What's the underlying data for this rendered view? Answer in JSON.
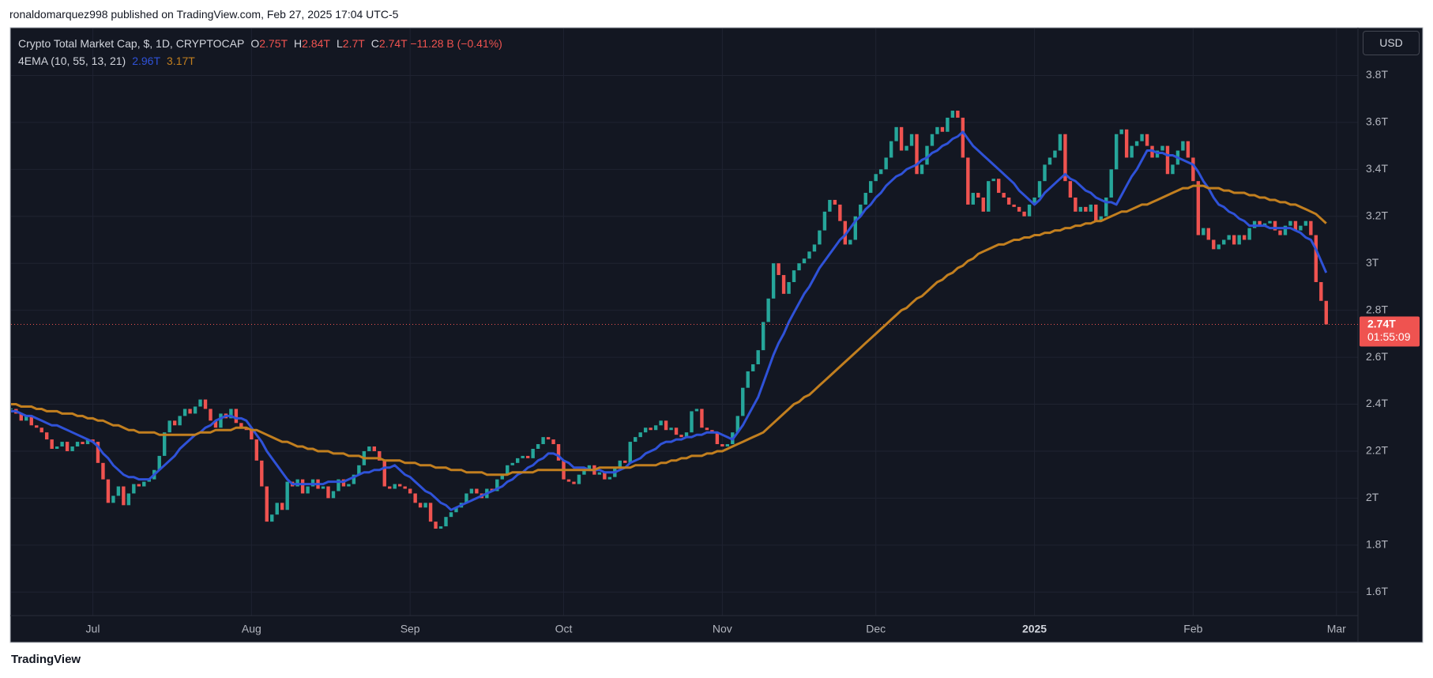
{
  "header": {
    "text": "ronaldomarquez998 published on TradingView.com, Feb 27, 2025 17:04 UTC-5"
  },
  "footer": {
    "brand": "TradingView"
  },
  "chart_data": {
    "type": "candlestick",
    "title": "Crypto Total Market Cap, $, 1D, CRYPTOCAP",
    "ohlc": [
      {
        "label": "O",
        "value": "2.75T"
      },
      {
        "label": "H",
        "value": "2.84T"
      },
      {
        "label": "L",
        "value": "2.7T"
      },
      {
        "label": "C",
        "value": "2.74T"
      }
    ],
    "change": "−11.28 B (−0.41%)",
    "indicator": "4EMA (10, 55, 13, 21)",
    "currency": "USD",
    "last_label": "2.74T",
    "countdown": "01:55:09",
    "up_color": "#26a69a",
    "down_color": "#ef5350",
    "categories": [
      null,
      null,
      null,
      null,
      null,
      null,
      null,
      null,
      null,
      null,
      null,
      null,
      null,
      null,
      null,
      null,
      "Jul",
      null,
      null,
      null,
      null,
      null,
      null,
      null,
      null,
      null,
      null,
      null,
      null,
      null,
      null,
      null,
      null,
      null,
      null,
      null,
      null,
      null,
      null,
      null,
      null,
      null,
      null,
      null,
      null,
      null,
      null,
      "Aug",
      null,
      null,
      null,
      null,
      null,
      null,
      null,
      null,
      null,
      null,
      null,
      null,
      null,
      null,
      null,
      null,
      null,
      null,
      null,
      null,
      null,
      null,
      null,
      null,
      null,
      null,
      null,
      null,
      null,
      null,
      "Sep",
      null,
      null,
      null,
      null,
      null,
      null,
      null,
      null,
      null,
      null,
      null,
      null,
      null,
      null,
      null,
      null,
      null,
      null,
      null,
      null,
      null,
      null,
      null,
      null,
      null,
      null,
      null,
      null,
      null,
      "Oct",
      null,
      null,
      null,
      null,
      null,
      null,
      null,
      null,
      null,
      null,
      null,
      null,
      null,
      null,
      null,
      null,
      null,
      null,
      null,
      null,
      null,
      null,
      null,
      null,
      null,
      null,
      null,
      null,
      null,
      null,
      "Nov",
      null,
      null,
      null,
      null,
      null,
      null,
      null,
      null,
      null,
      null,
      null,
      null,
      null,
      null,
      null,
      null,
      null,
      null,
      null,
      null,
      null,
      null,
      null,
      null,
      null,
      null,
      null,
      null,
      null,
      "Dec",
      null,
      null,
      null,
      null,
      null,
      null,
      null,
      null,
      null,
      null,
      null,
      null,
      null,
      null,
      null,
      null,
      null,
      null,
      null,
      null,
      null,
      null,
      null,
      null,
      null,
      null,
      null,
      null,
      null,
      null,
      "2025",
      null,
      null,
      null,
      null,
      null,
      null,
      null,
      null,
      null,
      null,
      null,
      null,
      null,
      null,
      null,
      null,
      null,
      null,
      null,
      null,
      null,
      null,
      null,
      null,
      null,
      null,
      null,
      null,
      null,
      null,
      "Feb",
      null,
      null,
      null,
      null,
      null,
      null,
      null,
      null,
      null,
      null,
      null,
      null,
      null,
      null,
      null,
      null,
      null,
      null,
      null,
      null,
      null,
      null,
      null,
      null,
      null,
      null,
      null,
      "Mar"
    ],
    "values": [
      2.38,
      2.36,
      2.33,
      2.35,
      2.31,
      2.3,
      2.28,
      2.25,
      2.21,
      2.22,
      2.24,
      2.2,
      2.22,
      2.24,
      2.23,
      2.25,
      2.24,
      2.15,
      2.08,
      1.98,
      2.01,
      2.05,
      1.97,
      2.02,
      2.06,
      2.05,
      2.07,
      2.08,
      2.12,
      2.18,
      2.28,
      2.33,
      2.31,
      2.35,
      2.38,
      2.36,
      2.39,
      2.42,
      2.38,
      2.33,
      2.3,
      2.36,
      2.34,
      2.38,
      2.32,
      2.3,
      2.29,
      2.25,
      2.16,
      2.05,
      1.9,
      1.93,
      1.98,
      1.95,
      2.07,
      2.05,
      2.08,
      2.02,
      2.05,
      2.08,
      2.04,
      2.05,
      2.0,
      2.03,
      2.08,
      2.05,
      2.06,
      2.1,
      2.14,
      2.2,
      2.22,
      2.2,
      2.16,
      2.05,
      2.04,
      2.06,
      2.05,
      2.04,
      2.02,
      1.98,
      1.96,
      1.98,
      1.9,
      1.87,
      1.88,
      1.92,
      1.94,
      1.96,
      1.98,
      2.02,
      2.04,
      2.02,
      2.0,
      2.04,
      2.03,
      2.08,
      2.1,
      2.14,
      2.15,
      2.17,
      2.18,
      2.17,
      2.21,
      2.23,
      2.26,
      2.25,
      2.23,
      2.16,
      2.08,
      2.07,
      2.06,
      2.1,
      2.12,
      2.14,
      2.1,
      2.11,
      2.08,
      2.09,
      2.13,
      2.16,
      2.15,
      2.24,
      2.26,
      2.28,
      2.3,
      2.29,
      2.31,
      2.33,
      2.29,
      2.3,
      2.27,
      2.26,
      2.28,
      2.37,
      2.38,
      2.3,
      2.29,
      2.28,
      2.23,
      2.22,
      2.23,
      2.28,
      2.35,
      2.47,
      2.54,
      2.57,
      2.63,
      2.75,
      2.85,
      3.0,
      2.95,
      2.87,
      2.92,
      2.97,
      3.0,
      3.02,
      3.05,
      3.08,
      3.14,
      3.22,
      3.27,
      3.25,
      3.18,
      3.08,
      3.1,
      3.2,
      3.25,
      3.3,
      3.35,
      3.38,
      3.4,
      3.45,
      3.52,
      3.58,
      3.48,
      3.5,
      3.55,
      3.38,
      3.42,
      3.5,
      3.55,
      3.58,
      3.56,
      3.62,
      3.65,
      3.62,
      3.45,
      3.25,
      3.3,
      3.28,
      3.22,
      3.35,
      3.36,
      3.3,
      3.28,
      3.25,
      3.24,
      3.22,
      3.2,
      3.25,
      3.28,
      3.35,
      3.42,
      3.45,
      3.48,
      3.55,
      3.35,
      3.28,
      3.22,
      3.24,
      3.22,
      3.25,
      3.18,
      3.2,
      3.28,
      3.4,
      3.55,
      3.57,
      3.45,
      3.5,
      3.52,
      3.55,
      3.5,
      3.45,
      3.48,
      3.5,
      3.38,
      3.42,
      3.48,
      3.52,
      3.45,
      3.35,
      3.12,
      3.15,
      3.1,
      3.06,
      3.08,
      3.1,
      3.12,
      3.08,
      3.12,
      3.1,
      3.15,
      3.18,
      3.16,
      3.17,
      3.18,
      3.14,
      3.12,
      3.16,
      3.18,
      3.14,
      3.16,
      3.18,
      3.12,
      2.92,
      2.84,
      2.74,
      null,
      null
    ],
    "series": [
      {
        "legend_value": "2.96T",
        "color": "#2f52d8",
        "values": [
          2.37,
          2.37,
          2.36,
          2.35,
          2.35,
          2.34,
          2.33,
          2.32,
          2.31,
          2.31,
          2.3,
          2.29,
          2.28,
          2.27,
          2.26,
          2.25,
          2.24,
          2.22,
          2.19,
          2.17,
          2.14,
          2.12,
          2.1,
          2.09,
          2.09,
          2.08,
          2.08,
          2.08,
          2.1,
          2.12,
          2.14,
          2.16,
          2.18,
          2.21,
          2.23,
          2.25,
          2.27,
          2.28,
          2.3,
          2.31,
          2.33,
          2.34,
          2.35,
          2.35,
          2.34,
          2.34,
          2.33,
          2.3,
          2.27,
          2.24,
          2.2,
          2.17,
          2.14,
          2.11,
          2.08,
          2.06,
          2.06,
          2.06,
          2.06,
          2.06,
          2.06,
          2.06,
          2.07,
          2.07,
          2.07,
          2.07,
          2.08,
          2.09,
          2.1,
          2.11,
          2.11,
          2.12,
          2.12,
          2.13,
          2.13,
          2.14,
          2.12,
          2.1,
          2.09,
          2.07,
          2.05,
          2.03,
          2.02,
          2.0,
          1.98,
          1.97,
          1.95,
          1.96,
          1.97,
          1.98,
          1.99,
          2.0,
          2.01,
          2.02,
          2.03,
          2.04,
          2.05,
          2.07,
          2.08,
          2.1,
          2.11,
          2.13,
          2.14,
          2.16,
          2.17,
          2.19,
          2.19,
          2.18,
          2.16,
          2.15,
          2.13,
          2.13,
          2.13,
          2.12,
          2.12,
          2.12,
          2.11,
          2.11,
          2.11,
          2.12,
          2.13,
          2.15,
          2.16,
          2.17,
          2.19,
          2.2,
          2.21,
          2.23,
          2.24,
          2.24,
          2.25,
          2.25,
          2.26,
          2.26,
          2.27,
          2.27,
          2.28,
          2.28,
          2.28,
          2.27,
          2.26,
          2.25,
          2.28,
          2.31,
          2.35,
          2.39,
          2.43,
          2.49,
          2.55,
          2.61,
          2.66,
          2.7,
          2.75,
          2.79,
          2.83,
          2.87,
          2.9,
          2.94,
          2.98,
          3.01,
          3.04,
          3.07,
          3.1,
          3.12,
          3.15,
          3.18,
          3.2,
          3.23,
          3.25,
          3.28,
          3.3,
          3.33,
          3.35,
          3.37,
          3.38,
          3.4,
          3.41,
          3.42,
          3.44,
          3.45,
          3.47,
          3.48,
          3.5,
          3.51,
          3.53,
          3.54,
          3.56,
          3.53,
          3.5,
          3.48,
          3.46,
          3.44,
          3.42,
          3.4,
          3.38,
          3.36,
          3.34,
          3.31,
          3.29,
          3.27,
          3.25,
          3.27,
          3.3,
          3.32,
          3.34,
          3.36,
          3.38,
          3.36,
          3.35,
          3.33,
          3.31,
          3.3,
          3.28,
          3.27,
          3.26,
          3.26,
          3.25,
          3.29,
          3.33,
          3.37,
          3.4,
          3.44,
          3.48,
          3.48,
          3.47,
          3.47,
          3.46,
          3.46,
          3.45,
          3.44,
          3.43,
          3.42,
          3.39,
          3.35,
          3.32,
          3.28,
          3.25,
          3.24,
          3.22,
          3.21,
          3.19,
          3.18,
          3.16,
          3.16,
          3.16,
          3.16,
          3.15,
          3.15,
          3.15,
          3.15,
          3.15,
          3.14,
          3.13,
          3.11,
          3.1,
          3.06,
          3.01,
          2.96,
          null,
          null
        ]
      },
      {
        "legend_value": "3.17T",
        "color": "#c27f1f",
        "values": [
          2.4,
          2.4,
          2.39,
          2.39,
          2.39,
          2.38,
          2.38,
          2.37,
          2.37,
          2.37,
          2.36,
          2.36,
          2.36,
          2.35,
          2.35,
          2.34,
          2.34,
          2.33,
          2.33,
          2.32,
          2.31,
          2.31,
          2.3,
          2.29,
          2.29,
          2.28,
          2.28,
          2.28,
          2.28,
          2.27,
          2.27,
          2.27,
          2.27,
          2.27,
          2.27,
          2.27,
          2.27,
          2.28,
          2.28,
          2.28,
          2.29,
          2.29,
          2.29,
          2.29,
          2.3,
          2.3,
          2.3,
          2.29,
          2.29,
          2.28,
          2.27,
          2.26,
          2.25,
          2.24,
          2.24,
          2.23,
          2.22,
          2.22,
          2.21,
          2.21,
          2.2,
          2.2,
          2.2,
          2.19,
          2.19,
          2.19,
          2.18,
          2.18,
          2.18,
          2.17,
          2.17,
          2.17,
          2.17,
          2.16,
          2.16,
          2.16,
          2.16,
          2.15,
          2.15,
          2.15,
          2.14,
          2.14,
          2.14,
          2.13,
          2.13,
          2.13,
          2.12,
          2.12,
          2.12,
          2.11,
          2.11,
          2.11,
          2.11,
          2.1,
          2.1,
          2.1,
          2.1,
          2.1,
          2.11,
          2.11,
          2.11,
          2.11,
          2.11,
          2.12,
          2.12,
          2.12,
          2.12,
          2.12,
          2.12,
          2.12,
          2.12,
          2.12,
          2.12,
          2.12,
          2.12,
          2.13,
          2.13,
          2.13,
          2.13,
          2.13,
          2.13,
          2.13,
          2.14,
          2.14,
          2.14,
          2.14,
          2.14,
          2.15,
          2.15,
          2.16,
          2.16,
          2.17,
          2.17,
          2.18,
          2.18,
          2.18,
          2.19,
          2.19,
          2.2,
          2.2,
          2.21,
          2.22,
          2.23,
          2.24,
          2.25,
          2.26,
          2.27,
          2.28,
          2.3,
          2.32,
          2.34,
          2.36,
          2.38,
          2.4,
          2.41,
          2.43,
          2.44,
          2.46,
          2.48,
          2.5,
          2.52,
          2.54,
          2.56,
          2.58,
          2.6,
          2.62,
          2.64,
          2.66,
          2.68,
          2.7,
          2.72,
          2.74,
          2.76,
          2.78,
          2.8,
          2.81,
          2.83,
          2.85,
          2.86,
          2.88,
          2.9,
          2.92,
          2.93,
          2.95,
          2.96,
          2.98,
          2.99,
          3.01,
          3.02,
          3.04,
          3.05,
          3.06,
          3.07,
          3.08,
          3.08,
          3.09,
          3.1,
          3.1,
          3.11,
          3.11,
          3.12,
          3.12,
          3.13,
          3.13,
          3.14,
          3.14,
          3.15,
          3.15,
          3.16,
          3.16,
          3.17,
          3.17,
          3.18,
          3.18,
          3.19,
          3.2,
          3.21,
          3.22,
          3.22,
          3.23,
          3.24,
          3.25,
          3.25,
          3.26,
          3.27,
          3.28,
          3.29,
          3.3,
          3.31,
          3.32,
          3.32,
          3.33,
          3.33,
          3.33,
          3.32,
          3.32,
          3.32,
          3.31,
          3.31,
          3.3,
          3.3,
          3.3,
          3.29,
          3.29,
          3.28,
          3.28,
          3.27,
          3.27,
          3.26,
          3.26,
          3.25,
          3.25,
          3.24,
          3.23,
          3.22,
          3.21,
          3.19,
          3.17,
          null,
          null
        ]
      }
    ],
    "ylim": [
      1.5,
      4.0
    ],
    "yticks": [
      {
        "value": 1.6,
        "label": "1.6T"
      },
      {
        "value": 1.8,
        "label": "1.8T"
      },
      {
        "value": 2,
        "label": "2T"
      },
      {
        "value": 2.2,
        "label": "2.2T"
      },
      {
        "value": 2.4,
        "label": "2.4T"
      },
      {
        "value": 2.6,
        "label": "2.6T"
      },
      {
        "value": 2.8,
        "label": "2.8T"
      },
      {
        "value": 3,
        "label": "3T"
      },
      {
        "value": 3.2,
        "label": "3.2T"
      },
      {
        "value": 3.4,
        "label": "3.4T"
      },
      {
        "value": 3.6,
        "label": "3.6T"
      },
      {
        "value": 3.8,
        "label": "3.8T"
      }
    ],
    "grid": true
  }
}
